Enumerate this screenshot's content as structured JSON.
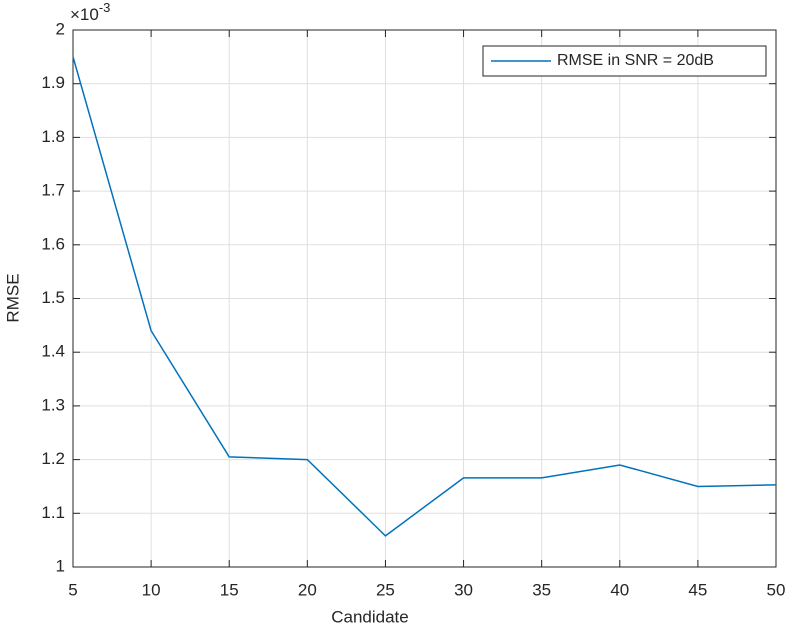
{
  "chart_data": {
    "type": "line",
    "x_label": "Candidate",
    "y_label": "RMSE",
    "y_exponent": {
      "base": "×10",
      "power": "-3"
    },
    "x": [
      5,
      10,
      15,
      20,
      25,
      30,
      35,
      40,
      45,
      50
    ],
    "series": [
      {
        "name": "RMSE in SNR = 20dB",
        "color": "#0072bd",
        "values": [
          1.95,
          1.44,
          1.205,
          1.2,
          1.058,
          1.166,
          1.166,
          1.19,
          1.15,
          1.153
        ]
      }
    ],
    "xlim": [
      5,
      50
    ],
    "xticks": [
      5,
      10,
      15,
      20,
      25,
      30,
      35,
      40,
      45,
      50
    ],
    "ylim": [
      1,
      2
    ],
    "yticks": [
      1,
      1.1,
      1.2,
      1.3,
      1.4,
      1.5,
      1.6,
      1.7,
      1.8,
      1.9,
      2
    ],
    "grid": true,
    "legend": "top-right"
  }
}
